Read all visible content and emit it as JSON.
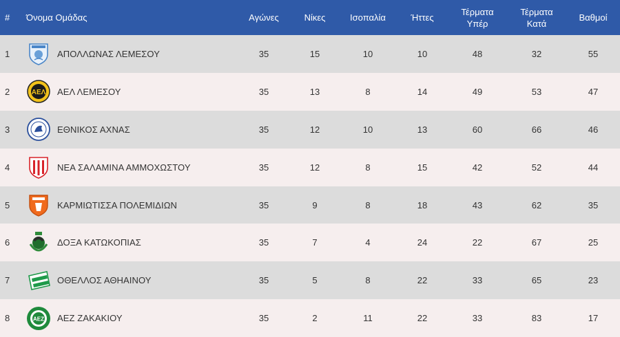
{
  "table": {
    "headers": {
      "rank": "#",
      "team": "Όνομα Ομάδας",
      "played": "Αγώνες",
      "wins": "Νίκες",
      "draws": "Ισοπαλία",
      "losses": "Ήττες",
      "goals_for_line1": "Τέρματα",
      "goals_for_line2": "Υπέρ",
      "goals_against_line1": "Τέρματα",
      "goals_against_line2": "Κατά",
      "points": "Βαθμοί"
    },
    "rows": [
      {
        "rank": "1",
        "team": "ΑΠΟΛΛΩΝΑΣ ΛΕΜΕΣΟΥ",
        "crest": "apollon-crest-icon",
        "played": "35",
        "wins": "15",
        "draws": "10",
        "losses": "10",
        "gf": "48",
        "ga": "32",
        "points": "55"
      },
      {
        "rank": "2",
        "team": "ΑΕΛ ΛΕΜΕΣΟΥ",
        "crest": "ael-crest-icon",
        "played": "35",
        "wins": "13",
        "draws": "8",
        "losses": "14",
        "gf": "49",
        "ga": "53",
        "points": "47"
      },
      {
        "rank": "3",
        "team": "ΕΘΝΙΚΟΣ ΑΧΝΑΣ",
        "crest": "ethnikos-crest-icon",
        "played": "35",
        "wins": "12",
        "draws": "10",
        "losses": "13",
        "gf": "60",
        "ga": "66",
        "points": "46"
      },
      {
        "rank": "4",
        "team": "ΝΕΑ ΣΑΛΑΜΙΝΑ ΑΜΜΟΧΩΣΤΟΥ",
        "crest": "nea-salamina-crest-icon",
        "played": "35",
        "wins": "12",
        "draws": "8",
        "losses": "15",
        "gf": "42",
        "ga": "52",
        "points": "44"
      },
      {
        "rank": "5",
        "team": "ΚΑΡΜΙΩΤΙΣΣΑ ΠΟΛΕΜΙΔΙΩΝ",
        "crest": "karmiotissa-crest-icon",
        "played": "35",
        "wins": "9",
        "draws": "8",
        "losses": "18",
        "gf": "43",
        "ga": "62",
        "points": "35"
      },
      {
        "rank": "6",
        "team": "ΔΟΞΑ ΚΑΤΩΚΟΠΙΑΣ",
        "crest": "doxa-crest-icon",
        "played": "35",
        "wins": "7",
        "draws": "4",
        "losses": "24",
        "gf": "22",
        "ga": "67",
        "points": "25"
      },
      {
        "rank": "7",
        "team": "ΟΘΕΛΛΟΣ ΑΘΗΑΙΝΟΥ",
        "crest": "othellos-crest-icon",
        "played": "35",
        "wins": "5",
        "draws": "8",
        "losses": "22",
        "gf": "33",
        "ga": "65",
        "points": "23"
      },
      {
        "rank": "8",
        "team": "ΑΕΖ ΖΑΚΑΚΙΟΥ",
        "crest": "aez-crest-icon",
        "played": "35",
        "wins": "2",
        "draws": "11",
        "losses": "22",
        "gf": "33",
        "ga": "83",
        "points": "17"
      }
    ]
  },
  "colors": {
    "header_bg": "#2f5aa8",
    "row_odd": "#dcdcdc",
    "row_even": "#f6eeee",
    "text": "#333333"
  }
}
